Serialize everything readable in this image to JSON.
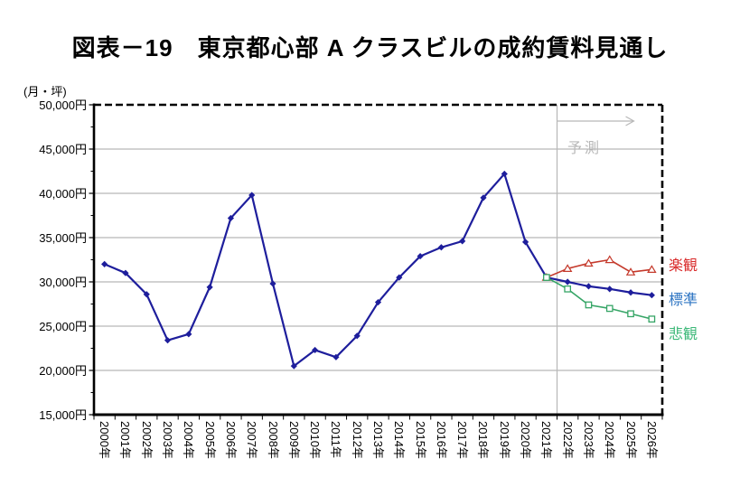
{
  "chart_data": {
    "type": "line",
    "title": "図表－19　東京都心部 A クラスビルの成約賃料見通し",
    "ylabel": "(月・坪)",
    "ylim": [
      15000,
      50000
    ],
    "ytick_step": 5000,
    "ytick_labels": [
      "50,000円",
      "45,000円",
      "40,000円",
      "35,000円",
      "30,000円",
      "25,000円",
      "20,000円",
      "15,000円"
    ],
    "grid": true,
    "legend_position": "right",
    "forecast": {
      "label": "予測",
      "boundary_index": 22
    },
    "categories": [
      "2000年",
      "2001年",
      "2002年",
      "2003年",
      "2004年",
      "2005年",
      "2006年",
      "2007年",
      "2008年",
      "2009年",
      "2010年",
      "2011年",
      "2012年",
      "2013年",
      "2014年",
      "2015年",
      "2016年",
      "2017年",
      "2018年",
      "2019年",
      "2020年",
      "2021年",
      "2022年",
      "2023年",
      "2024年",
      "2025年",
      "2026年"
    ],
    "series": [
      {
        "id": "actual",
        "color": "navy",
        "marker": "diamond",
        "width": 2.2,
        "values": [
          32000,
          31000,
          28600,
          23400,
          24100,
          29400,
          37200,
          39800,
          29800,
          20500,
          22300,
          21500,
          23900,
          27700,
          30500,
          32900,
          33900,
          34600,
          39500,
          42200,
          34500,
          30500,
          null,
          null,
          null,
          null,
          null
        ]
      },
      {
        "id": "optimistic",
        "color": "red",
        "marker": "triangle-open",
        "width": 1.6,
        "values": [
          null,
          null,
          null,
          null,
          null,
          null,
          null,
          null,
          null,
          null,
          null,
          null,
          null,
          null,
          null,
          null,
          null,
          null,
          null,
          null,
          null,
          30500,
          31500,
          32100,
          32500,
          31100,
          31400
        ]
      },
      {
        "id": "standard",
        "color": "navy",
        "marker": "diamond",
        "width": 2.2,
        "values": [
          null,
          null,
          null,
          null,
          null,
          null,
          null,
          null,
          null,
          null,
          null,
          null,
          null,
          null,
          null,
          null,
          null,
          null,
          null,
          null,
          null,
          30500,
          30000,
          29500,
          29200,
          28800,
          28500
        ]
      },
      {
        "id": "pessimistic",
        "color": "green",
        "marker": "square-open",
        "width": 1.6,
        "values": [
          null,
          null,
          null,
          null,
          null,
          null,
          null,
          null,
          null,
          null,
          null,
          null,
          null,
          null,
          null,
          null,
          null,
          null,
          null,
          null,
          null,
          30500,
          29200,
          27400,
          27000,
          26400,
          25800
        ]
      }
    ],
    "legend": [
      {
        "id": "optimistic",
        "label": "楽観",
        "color": "#d92b2b"
      },
      {
        "id": "standard",
        "label": "標準",
        "color": "#2e75c3"
      },
      {
        "id": "pessimistic",
        "label": "悲観",
        "color": "#3cb878"
      }
    ],
    "colors": {
      "navy": "#1e1e9c",
      "red": "#c53a2c",
      "green": "#36a566",
      "grid": "#a6a6a6",
      "forecast_gray": "#b8b8b8",
      "axis": "#000000"
    }
  }
}
